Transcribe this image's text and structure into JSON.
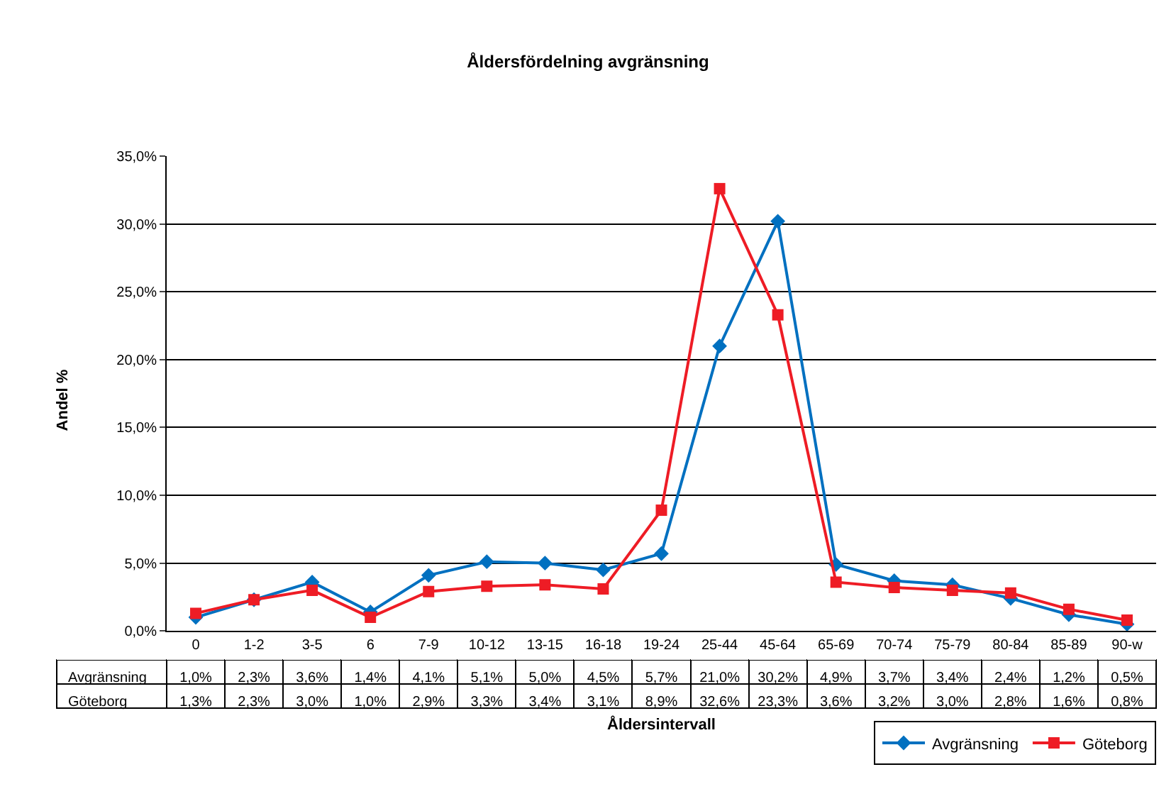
{
  "chart_data": {
    "type": "line",
    "title": "Åldersfördelning avgränsning",
    "xlabel": "Åldersintervall",
    "ylabel": "Andel %",
    "categories": [
      "0",
      "1-2",
      "3-5",
      "6",
      "7-9",
      "10-12",
      "13-15",
      "16-18",
      "19-24",
      "25-44",
      "45-64",
      "65-69",
      "70-74",
      "75-79",
      "80-84",
      "85-89",
      "90-w"
    ],
    "series": [
      {
        "name": "Avgränsning",
        "color": "#0070c0",
        "marker": "diamond",
        "values": [
          1.0,
          2.3,
          3.6,
          1.4,
          4.1,
          5.1,
          5.0,
          4.5,
          5.7,
          21.0,
          30.2,
          4.9,
          3.7,
          3.4,
          2.4,
          1.2,
          0.5
        ],
        "value_labels": [
          "1,0%",
          "2,3%",
          "3,6%",
          "1,4%",
          "4,1%",
          "5,1%",
          "5,0%",
          "4,5%",
          "5,7%",
          "21,0%",
          "30,2%",
          "4,9%",
          "3,7%",
          "3,4%",
          "2,4%",
          "1,2%",
          "0,5%"
        ]
      },
      {
        "name": "Göteborg",
        "color": "#ee1c25",
        "marker": "square",
        "values": [
          1.3,
          2.3,
          3.0,
          1.0,
          2.9,
          3.3,
          3.4,
          3.1,
          8.9,
          32.6,
          23.3,
          3.6,
          3.2,
          3.0,
          2.8,
          1.6,
          0.8
        ],
        "value_labels": [
          "1,3%",
          "2,3%",
          "3,0%",
          "1,0%",
          "2,9%",
          "3,3%",
          "3,4%",
          "3,1%",
          "8,9%",
          "32,6%",
          "23,3%",
          "3,6%",
          "3,2%",
          "3,0%",
          "2,8%",
          "1,6%",
          "0,8%"
        ]
      }
    ],
    "ylim": [
      0,
      35
    ],
    "yticks": [
      {
        "value": 0,
        "label": "0,0%"
      },
      {
        "value": 5,
        "label": "5,0%"
      },
      {
        "value": 10,
        "label": "10,0%"
      },
      {
        "value": 15,
        "label": "15,0%"
      },
      {
        "value": 20,
        "label": "20,0%"
      },
      {
        "value": 25,
        "label": "25,0%"
      },
      {
        "value": 30,
        "label": "30,0%"
      },
      {
        "value": 35,
        "label": "35,0%"
      }
    ],
    "grid": "y",
    "legend": "bottom right",
    "line_style": "solid"
  }
}
